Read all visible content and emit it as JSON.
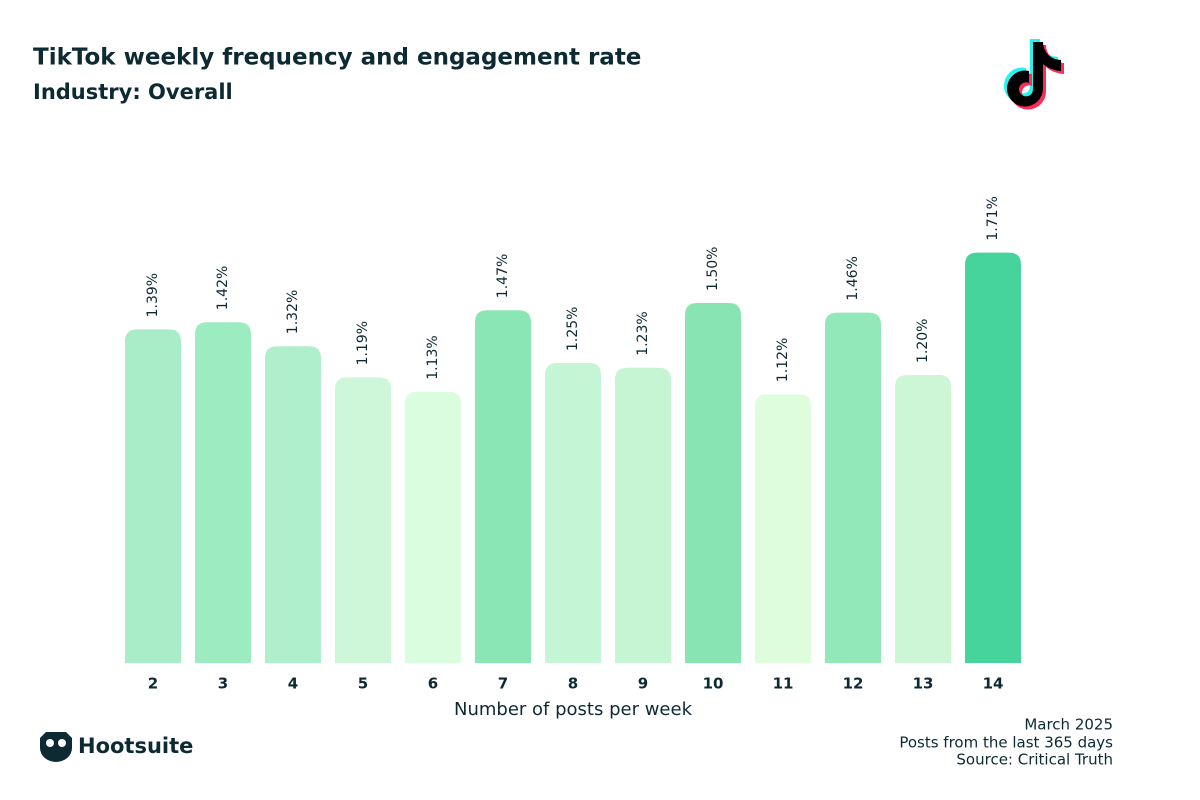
{
  "chart_data": {
    "type": "bar",
    "title": "TikTok weekly frequency and engagement rate",
    "subtitle": "Industry: Overall",
    "x_label": "Number of posts per week",
    "categories": [
      "2",
      "3",
      "4",
      "5",
      "6",
      "7",
      "8",
      "9",
      "10",
      "11",
      "12",
      "13",
      "14"
    ],
    "values": [
      1.39,
      1.42,
      1.32,
      1.19,
      1.13,
      1.47,
      1.25,
      1.23,
      1.5,
      1.12,
      1.46,
      1.2,
      1.71
    ],
    "value_labels": [
      "1.39%",
      "1.42%",
      "1.32%",
      "1.19%",
      "1.13%",
      "1.47%",
      "1.25%",
      "1.23%",
      "1.50%",
      "1.12%",
      "1.46%",
      "1.20%",
      "1.71%"
    ],
    "colors": [
      "#a8ecc8",
      "#9debc0",
      "#b0efcc",
      "#cdf7d8",
      "#dafcdf",
      "#8ae6b5",
      "#c4f5d4",
      "#c6f5d4",
      "#88e5b3",
      "#ddfddd",
      "#93e8ba",
      "#ccf6d6",
      "#46d39c"
    ],
    "footnotes": [
      "March 2025",
      "Posts from the last 365 days",
      "Source: Critical Truth"
    ],
    "brand": "Hootsuite"
  }
}
